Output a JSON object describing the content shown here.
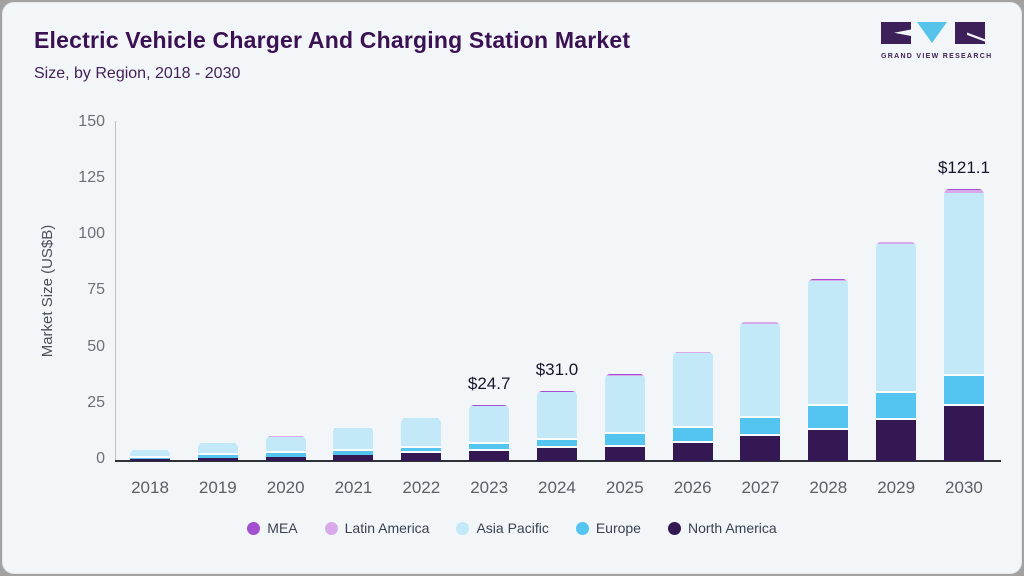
{
  "header": {
    "title": "Electric Vehicle Charger And Charging Station Market",
    "subtitle": "Size, by Region, 2018 - 2030",
    "logo_caption": "GRAND VIEW RESEARCH"
  },
  "chart_data": {
    "type": "bar",
    "stacked": true,
    "title": "Electric Vehicle Charger And Charging Station Market Size, by Region, 2018 - 2030",
    "xlabel": "",
    "ylabel": "Market Size (US$B)",
    "ylim": [
      0,
      150
    ],
    "yticks": [
      0,
      25,
      50,
      75,
      100,
      125,
      150
    ],
    "grid": false,
    "categories": [
      "2018",
      "2019",
      "2020",
      "2021",
      "2022",
      "2023",
      "2024",
      "2025",
      "2026",
      "2027",
      "2028",
      "2029",
      "2030"
    ],
    "series": [
      {
        "name": "North America",
        "color": "#331853",
        "values": [
          0.9,
          1.5,
          2.0,
          2.7,
          3.5,
          4.4,
          5.6,
          6.4,
          8.0,
          11.0,
          13.8,
          18.3,
          24.5
        ]
      },
      {
        "name": "Europe",
        "color": "#53c5f0",
        "values": [
          0.6,
          1.0,
          1.4,
          1.9,
          2.4,
          3.1,
          3.9,
          5.5,
          6.7,
          7.9,
          10.5,
          11.9,
          13.3
        ]
      },
      {
        "name": "Asia Pacific",
        "color": "#c3e8f8",
        "values": [
          3.4,
          5.55,
          7.4,
          10.1,
          13.1,
          16.8,
          21.0,
          26.1,
          33.1,
          42.1,
          55.5,
          66.1,
          81.5
        ]
      },
      {
        "name": "Latin America",
        "color": "#d9aaea",
        "values": [
          0.06,
          0.09,
          0.12,
          0.13,
          0.2,
          0.26,
          0.32,
          0.4,
          0.5,
          0.65,
          0.8,
          0.85,
          1.2
        ]
      },
      {
        "name": "MEA",
        "color": "#a44ed2",
        "values": [
          0.04,
          0.06,
          0.08,
          0.07,
          0.1,
          0.14,
          0.18,
          0.2,
          0.3,
          0.35,
          0.4,
          0.35,
          0.6
        ]
      }
    ],
    "totals": [
      5.0,
      8.2,
      11.0,
      14.9,
      19.3,
      24.7,
      31.0,
      38.6,
      48.6,
      62.0,
      81.0,
      97.5,
      121.1
    ],
    "annotations": [
      {
        "category": "2023",
        "label": "$24.7"
      },
      {
        "category": "2024",
        "label": "$31.0"
      },
      {
        "category": "2030",
        "label": "$121.1"
      }
    ],
    "legend": {
      "position": "bottom",
      "items": [
        "MEA",
        "Latin America",
        "Asia Pacific",
        "Europe",
        "North America"
      ]
    }
  }
}
